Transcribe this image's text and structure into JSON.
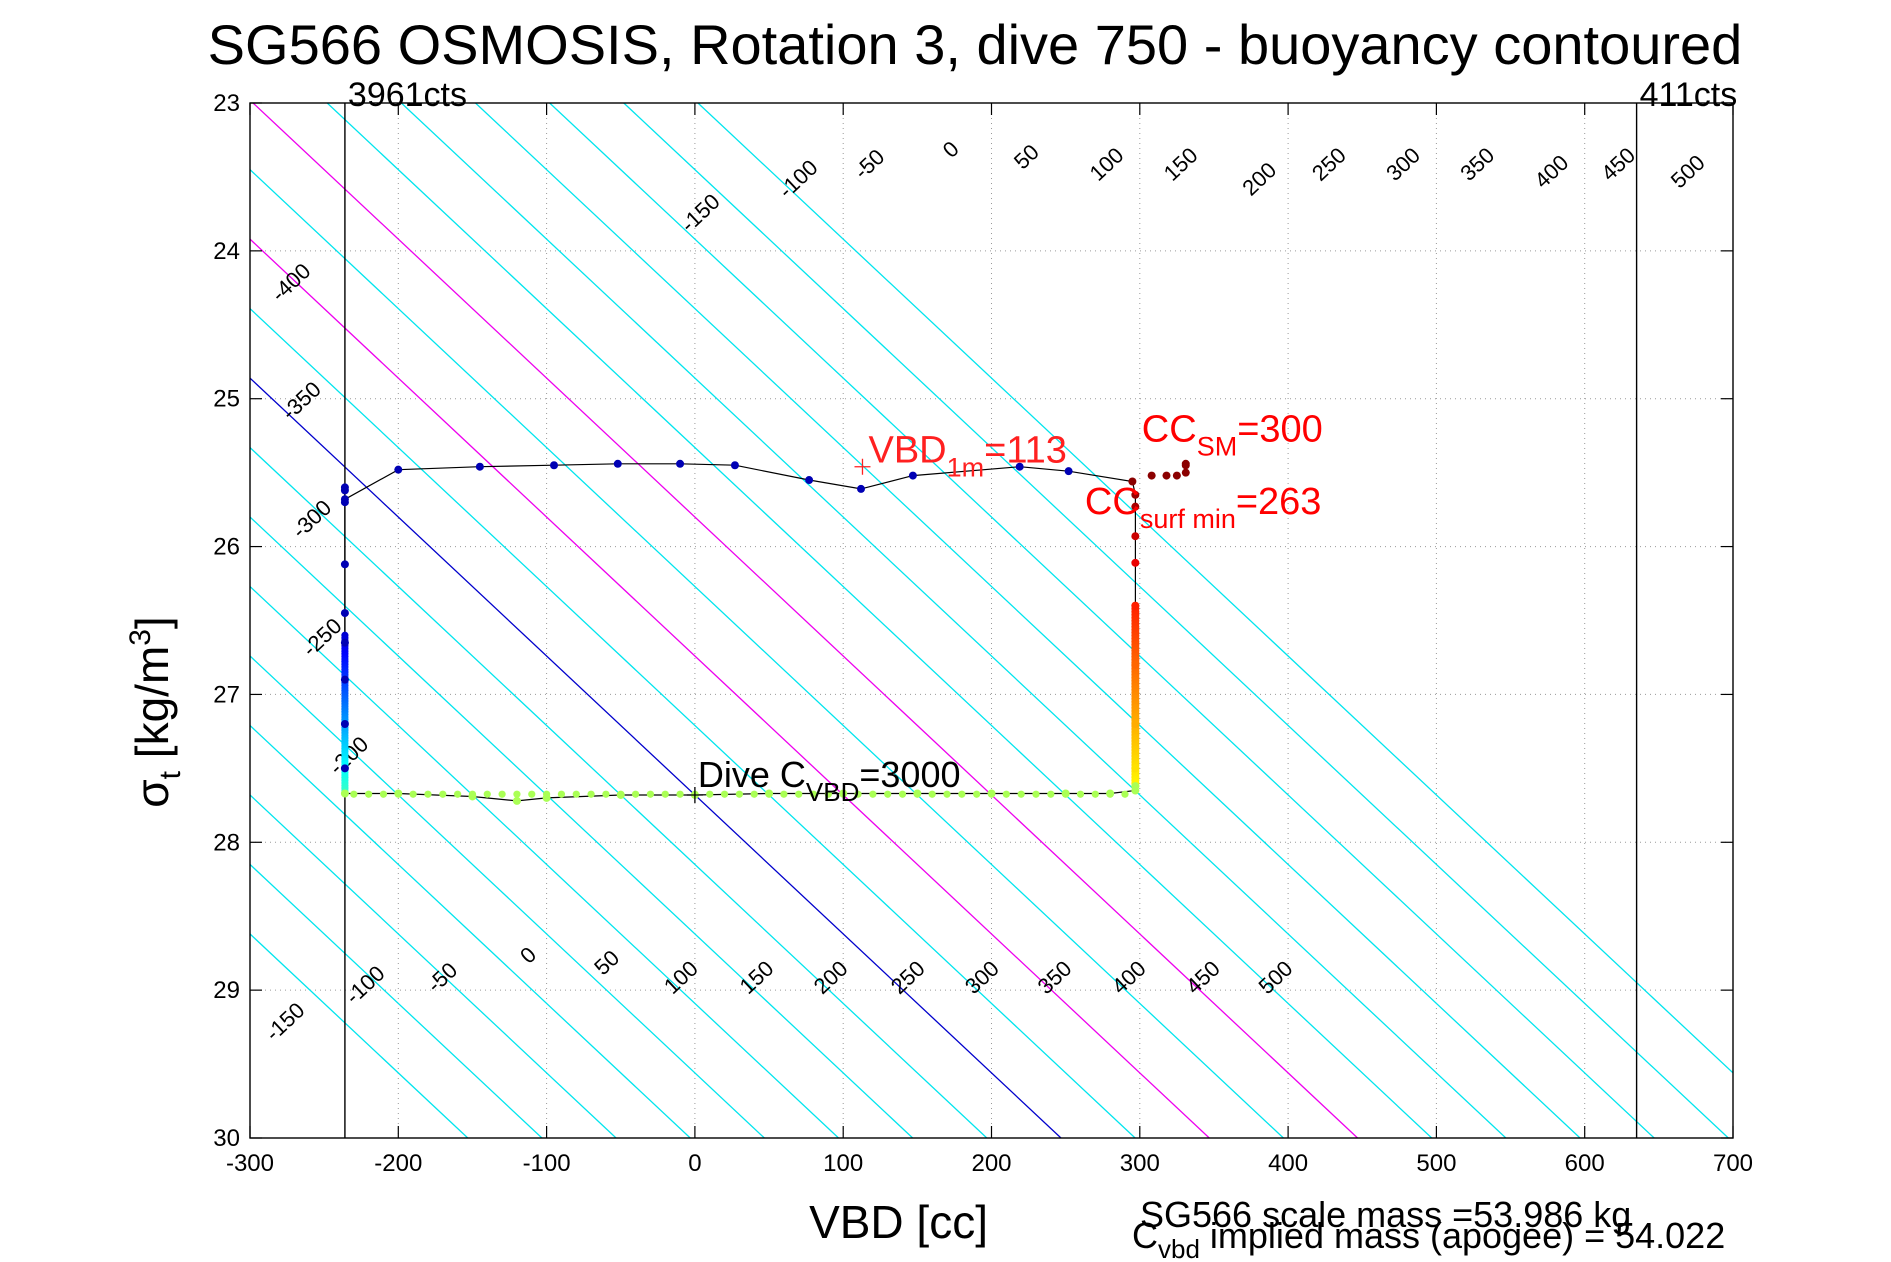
{
  "chart_data": {
    "type": "scatter",
    "title": "SG566 OSMOSIS, Rotation 3, dive 750 - buoyancy contoured",
    "xlabel": "VBD [cc]",
    "ylabel": {
      "base": "σ",
      "sub": "t",
      "main": " [kg/m",
      "sup": "3",
      "close": "]"
    },
    "xlim": [
      -300,
      700
    ],
    "ylim": [
      23,
      30
    ],
    "y_reversed": true,
    "grid": true,
    "x_ticks": [
      -300,
      -200,
      -100,
      0,
      100,
      200,
      300,
      400,
      500,
      600,
      700
    ],
    "y_ticks": [
      23,
      24,
      25,
      26,
      27,
      28,
      29,
      30
    ],
    "x_tick_labels": [
      "-300",
      "-200",
      "-100",
      "0",
      "100",
      "200",
      "300",
      "400",
      "500",
      "600",
      "700"
    ],
    "y_tick_labels": [
      "23",
      "24",
      "25",
      "26",
      "27",
      "28",
      "29",
      "30"
    ],
    "vbd_limits": [
      {
        "x": -236,
        "label": "3961cts"
      },
      {
        "x": 635,
        "label": "411cts"
      }
    ],
    "buoyancy_contours": {
      "slope_cc_per_sigma": 106.4,
      "zero_anchor": [
        0,
        27.68
      ],
      "levels": [
        -400,
        -350,
        -300,
        -250,
        -200,
        -150,
        -100,
        -50,
        0,
        50,
        100,
        150,
        200,
        250,
        300,
        350,
        400,
        450,
        500
      ],
      "colors": {
        "default": "#00e5ee",
        "zero": "#0000cc",
        "highlight": "#ee00ee"
      },
      "highlight_levels": [
        100,
        200
      ],
      "top_labels": [
        {
          "level": "-400",
          "x": -269,
          "y": 24.25
        },
        {
          "level": "-350",
          "x": -262,
          "y": 25.05
        },
        {
          "level": "-300",
          "x": -255,
          "y": 25.85
        },
        {
          "level": "-250",
          "x": -248,
          "y": 26.65
        },
        {
          "level": "-200",
          "x": -230,
          "y": 27.45
        },
        {
          "level": "-150",
          "x": 7,
          "y": 23.78
        },
        {
          "level": "-100",
          "x": 73,
          "y": 23.55
        },
        {
          "level": "-50",
          "x": 121,
          "y": 23.45
        },
        {
          "level": "0",
          "x": 176,
          "y": 23.35
        },
        {
          "level": "50",
          "x": 227,
          "y": 23.4
        },
        {
          "level": "100",
          "x": 281,
          "y": 23.45
        },
        {
          "level": "150",
          "x": 331,
          "y": 23.45
        },
        {
          "level": "200",
          "x": 384,
          "y": 23.55
        },
        {
          "level": "250",
          "x": 431,
          "y": 23.45
        },
        {
          "level": "300",
          "x": 481,
          "y": 23.45
        },
        {
          "level": "350",
          "x": 531,
          "y": 23.45
        },
        {
          "level": "400",
          "x": 581,
          "y": 23.5
        },
        {
          "level": "450",
          "x": 626,
          "y": 23.45
        },
        {
          "level": "500",
          "x": 673,
          "y": 23.5
        }
      ],
      "bottom_labels": [
        {
          "level": "-150",
          "x": -273,
          "y": 29.25
        },
        {
          "level": "-100",
          "x": -219,
          "y": 29.0
        },
        {
          "level": "-50",
          "x": -167,
          "y": 28.95
        },
        {
          "level": "0",
          "x": -109,
          "y": 28.8
        },
        {
          "level": "50",
          "x": -56,
          "y": 28.85
        },
        {
          "level": "100",
          "x": -6,
          "y": 28.95
        },
        {
          "level": "150",
          "x": 45,
          "y": 28.95
        },
        {
          "level": "200",
          "x": 95,
          "y": 28.95
        },
        {
          "level": "250",
          "x": 147,
          "y": 28.95
        },
        {
          "level": "300",
          "x": 197,
          "y": 28.95
        },
        {
          "level": "350",
          "x": 246,
          "y": 28.95
        },
        {
          "level": "400",
          "x": 296,
          "y": 28.95
        },
        {
          "level": "450",
          "x": 346,
          "y": 28.95
        },
        {
          "level": "500",
          "x": 395,
          "y": 28.95
        }
      ]
    },
    "trajectory": {
      "line_color": "#000000",
      "points": [
        [
          -236,
          25.6
        ],
        [
          -236,
          25.62
        ],
        [
          -236,
          25.68
        ],
        [
          -200,
          25.48
        ],
        [
          -145,
          25.46
        ],
        [
          -95,
          25.45
        ],
        [
          -52,
          25.44
        ],
        [
          -10,
          25.44
        ],
        [
          27,
          25.45
        ],
        [
          77,
          25.55
        ],
        [
          112,
          25.61
        ],
        [
          147,
          25.52
        ],
        [
          219,
          25.46
        ],
        [
          252,
          25.49
        ],
        [
          295,
          25.56
        ],
        [
          297,
          25.65
        ],
        [
          297,
          25.73
        ],
        [
          297,
          25.93
        ],
        [
          297,
          26.11
        ],
        [
          297,
          26.4
        ],
        [
          297,
          26.8
        ],
        [
          297,
          27.2
        ],
        [
          297,
          27.5
        ],
        [
          297,
          27.62
        ],
        [
          297,
          27.65
        ],
        [
          280,
          27.67
        ],
        [
          250,
          27.67
        ],
        [
          200,
          27.67
        ],
        [
          150,
          27.67
        ],
        [
          100,
          27.67
        ],
        [
          50,
          27.67
        ],
        [
          0,
          27.68
        ],
        [
          -50,
          27.68
        ],
        [
          -100,
          27.7
        ],
        [
          -120,
          27.72
        ],
        [
          -150,
          27.69
        ],
        [
          -200,
          27.67
        ],
        [
          -236,
          27.67
        ],
        [
          -236,
          27.5
        ],
        [
          -236,
          27.2
        ],
        [
          -236,
          26.9
        ],
        [
          -236,
          26.65
        ],
        [
          -236,
          26.45
        ],
        [
          -236,
          26.12
        ],
        [
          -236,
          25.7
        ]
      ],
      "surface_points": [
        [
          308,
          25.52
        ],
        [
          318,
          25.52
        ],
        [
          325,
          25.52
        ],
        [
          331,
          25.5
        ],
        [
          331,
          25.45
        ],
        [
          331,
          25.44
        ]
      ],
      "color_scale": "jet"
    },
    "annotations": [
      {
        "id": "vbd1m",
        "x": 113,
        "y": 25.46,
        "marker": "+",
        "color": "#ff2020",
        "base": "VBD",
        "sub": "1m",
        "rest": "=113"
      },
      {
        "id": "ccsm",
        "x": 300,
        "y": 25.29,
        "color": "#ff0000",
        "base": "CC",
        "sub": "SM",
        "rest": "=300"
      },
      {
        "id": "ccsurf",
        "x": 263,
        "y": 25.63,
        "color": "#ff0000",
        "base": "CC",
        "sub": "surf min",
        "rest": "=263"
      },
      {
        "id": "divec",
        "x": 0,
        "y": 27.68,
        "marker": "+",
        "color": "#000000",
        "base": "Dive C",
        "sub": "VBD",
        "rest": "=3000"
      }
    ],
    "footer": {
      "line1": "SG566 scale mass =53.986 kg",
      "line2_base": "C",
      "line2_sub": "vbd",
      "line2_rest": " implied mass (apogee) = 54.022"
    }
  }
}
